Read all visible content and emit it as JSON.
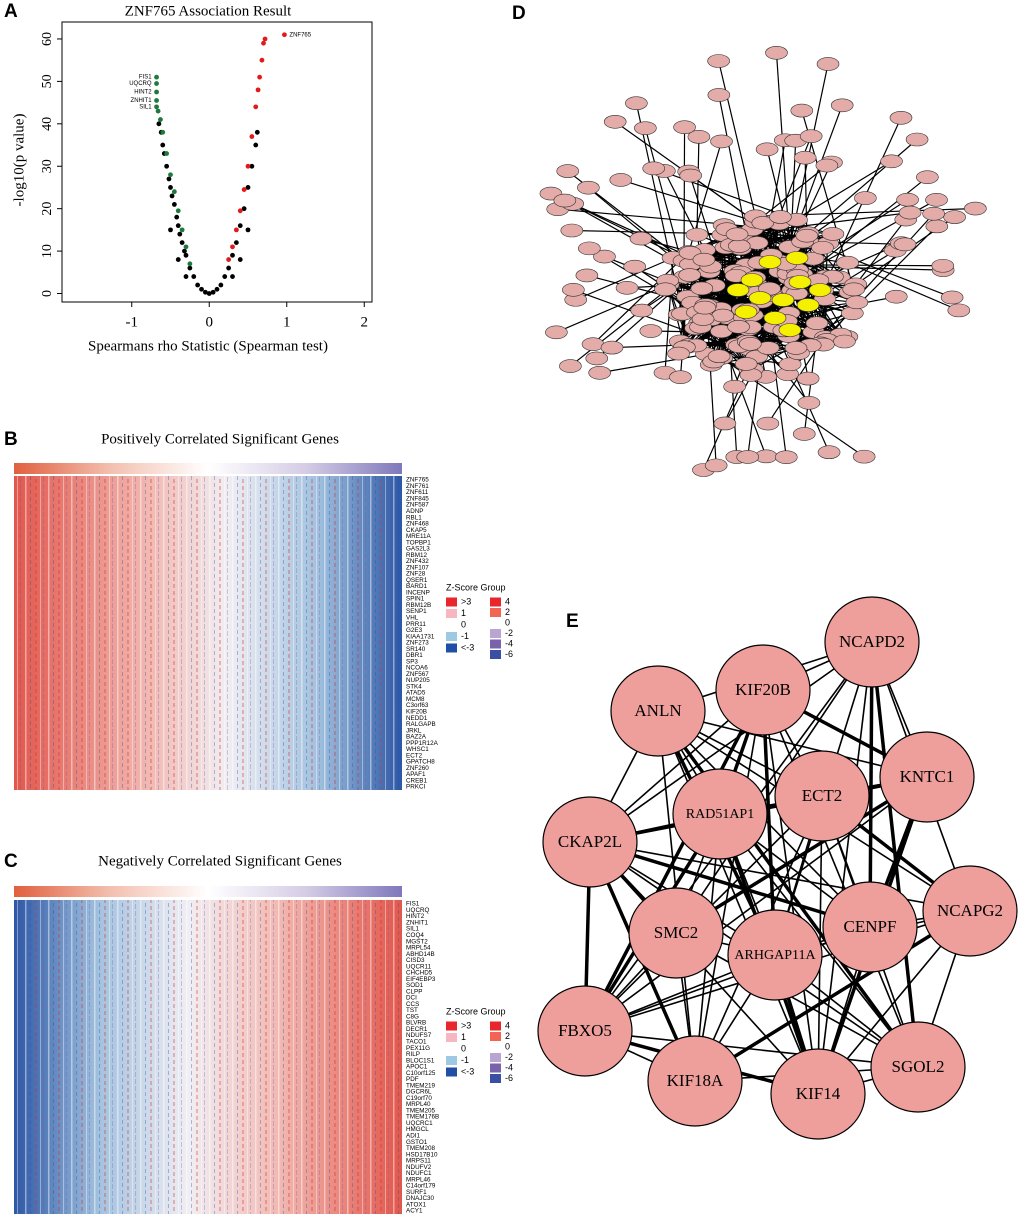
{
  "chart_data": [
    {
      "type": "scatter",
      "panel": "A",
      "title": "ZNF765 Association Result",
      "x_label": "Spearmans rho Statistic (Spearman test)",
      "y_label": "-log10(p value)",
      "xlim": [
        -1.9,
        2.1
      ],
      "ylim": [
        -2,
        64
      ],
      "xticks": [
        -1,
        0,
        1,
        2
      ],
      "yticks": [
        0,
        10,
        20,
        30,
        40,
        50,
        60
      ],
      "series": [
        {
          "color": "#000000",
          "x": [
            -0.65,
            -0.62,
            -0.6,
            -0.58,
            -0.55,
            -0.52,
            -0.5,
            -0.48,
            -0.45,
            -0.42,
            -0.4,
            -0.38,
            -0.35,
            -0.32,
            -0.3,
            -0.25,
            -0.2,
            -0.15,
            -0.1,
            -0.05,
            0,
            0.05,
            0.1,
            0.15,
            0.2,
            0.25,
            0.3,
            0.35,
            0.4,
            0.45,
            0.5,
            0.55,
            0.6,
            0.62,
            -0.5,
            -0.4,
            -0.3,
            0.3,
            0.4,
            0.5
          ],
          "values": [
            40,
            38,
            35,
            33,
            30,
            27,
            25,
            23,
            21,
            18,
            16,
            14,
            12,
            10,
            9,
            6,
            4,
            2,
            1,
            0.3,
            0,
            0.3,
            1,
            2,
            4,
            6,
            9,
            12,
            16,
            20,
            25,
            30,
            35,
            38,
            15,
            8,
            4,
            4,
            8,
            15
          ]
        },
        {
          "color": "#e31a1c",
          "x": [
            0.25,
            0.3,
            0.35,
            0.4,
            0.45,
            0.5,
            0.55,
            0.6,
            0.63,
            0.65,
            0.68,
            0.7,
            0.72,
            0.97
          ],
          "values": [
            8,
            11,
            15,
            19.5,
            24.5,
            30,
            37,
            44,
            48,
            51,
            55,
            59,
            60,
            61
          ],
          "labels": [
            null,
            null,
            null,
            null,
            null,
            null,
            null,
            null,
            null,
            null,
            null,
            null,
            null,
            "ZNF765"
          ]
        },
        {
          "color": "#1b7a3c",
          "x": [
            -0.25,
            -0.3,
            -0.35,
            -0.4,
            -0.45,
            -0.5,
            -0.55,
            -0.6,
            -0.63,
            -0.66,
            -0.68,
            -0.68,
            -0.68,
            -0.68,
            -0.68
          ],
          "values": [
            7,
            11,
            15,
            19.5,
            24,
            28,
            33,
            38,
            41,
            43,
            51,
            49.5,
            47.5,
            45.5,
            44
          ],
          "labels": [
            null,
            null,
            null,
            null,
            null,
            null,
            null,
            null,
            null,
            null,
            "FIS1",
            "UQCRQ",
            "HINT2",
            "ZNHIT1",
            "SIL1"
          ]
        }
      ]
    },
    {
      "type": "heatmap",
      "panel": "B",
      "title": "Positively Correlated Significant Genes",
      "rows": [
        "ZNF765",
        "ZNF761",
        "ZNF611",
        "ZNF845",
        "ZNF587",
        "ADNP",
        "RBL1",
        "ZNF468",
        "CKAP5",
        "MRE11A",
        "TOPBP1",
        "GAS2L3",
        "RBM12",
        "ZNF432",
        "ZNF107",
        "ZNF28",
        "QSER1",
        "BARD1",
        "INCENP",
        "SPIN1",
        "RBM12B",
        "SENP1",
        "VHL",
        "PRR11",
        "G2E3",
        "KIAA1731",
        "ZNF273",
        "SR140",
        "DBR1",
        "SP3",
        "NCOA6",
        "ZNF567",
        "NUP205",
        "STK4",
        "ATAD5",
        "MCM8",
        "C3orf63",
        "KIF20B",
        "NEDD1",
        "RALGAPB",
        "JRKL",
        "BAZ2A",
        "PPP1R12A",
        "WHSC1",
        "ECT2",
        "GPATCH8",
        "ZNF260",
        "APAF1",
        "CREB1",
        "PRKCI"
      ],
      "legend_title": "Z-Score Group",
      "legend": [
        {
          "label": ">3",
          "color": "#e8262b"
        },
        {
          "label": "1",
          "color": "#f7b6c2"
        },
        {
          "label": "0",
          "color": "#ffffff"
        },
        {
          "label": "-1",
          "color": "#9ec9e2"
        },
        {
          "label": "<-3",
          "color": "#1f4fa6"
        }
      ],
      "legend2": [
        {
          "label": 4,
          "color": "#e8262b"
        },
        {
          "label": 2,
          "color": "#f26552"
        },
        {
          "label": 0,
          "color": "#ffffff"
        },
        {
          "label": -2,
          "color": "#b9a6d0"
        },
        {
          "label": -4,
          "color": "#7a62ad"
        },
        {
          "label": -6,
          "color": "#3a4fa3"
        }
      ]
    },
    {
      "type": "heatmap",
      "panel": "C",
      "title": "Negatively Correlated Significant Genes",
      "rows": [
        "FIS1",
        "UQCRQ",
        "HINT2",
        "ZNHIT1",
        "SIL1",
        "COQ4",
        "MGST2",
        "MRPL54",
        "ABHD14B",
        "CISD3",
        "UQCR11",
        "CHCHD5",
        "EIF4EBP3",
        "SOD1",
        "CLPP",
        "DCI",
        "CCS",
        "TST",
        "C8G",
        "BLVRB",
        "DECR1",
        "NDUFS7",
        "TACO1",
        "PEX11G",
        "RILP",
        "BLOC1S1",
        "APOC1",
        "C10orf125",
        "PDF",
        "TMEM219",
        "DGCR6L",
        "C19orf70",
        "MRPL40",
        "TMEM205",
        "TMEM176B",
        "UQCRC1",
        "HMGCL",
        "ADI1",
        "GSTO1",
        "TMEM208",
        "HSD17B10",
        "MRPS11",
        "NDUFV2",
        "NDUFC1",
        "MRPL46",
        "C14orf179",
        "SURF1",
        "DNAJC30",
        "ATOX1",
        "ACY1"
      ],
      "legend_title": "Z-Score Group",
      "legend": [
        {
          "label": ">3",
          "color": "#e8262b"
        },
        {
          "label": "1",
          "color": "#f7b6c2"
        },
        {
          "label": "0",
          "color": "#ffffff"
        },
        {
          "label": "-1",
          "color": "#9ec9e2"
        },
        {
          "label": "<-3",
          "color": "#1f4fa6"
        }
      ],
      "legend2": [
        {
          "label": 4,
          "color": "#e8262b"
        },
        {
          "label": 2,
          "color": "#f26552"
        },
        {
          "label": 0,
          "color": "#ffffff"
        },
        {
          "label": -2,
          "color": "#b9a6d0"
        },
        {
          "label": -4,
          "color": "#7a62ad"
        },
        {
          "label": -6,
          "color": "#3a4fa3"
        }
      ]
    },
    {
      "type": "network",
      "panel": "D"
    },
    {
      "type": "hubnetwork",
      "panel": "E",
      "nodes": [
        "KIF20B",
        "NCAPD2",
        "ANLN",
        "KNTC1",
        "ECT2",
        "RAD51AP1",
        "CKAP2L",
        "NCAPG2",
        "CENPF",
        "SMC2",
        "ARHGAP11A",
        "FBXO5",
        "SGOL2",
        "KIF18A",
        "KIF14"
      ]
    }
  ]
}
